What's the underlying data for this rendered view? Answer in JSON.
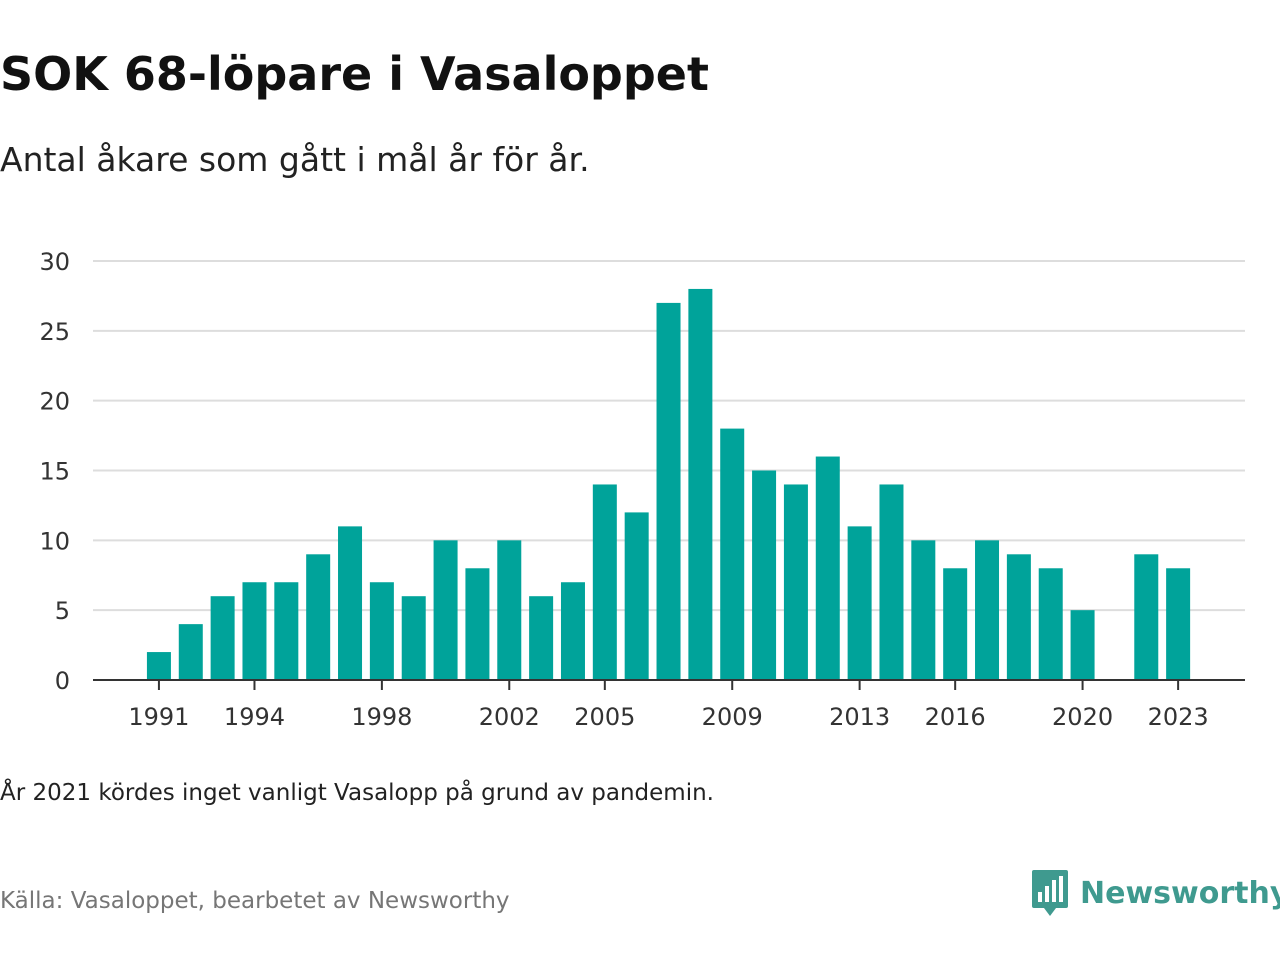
{
  "title": "SOK 68-löpare i Vasaloppet",
  "subtitle": "Antal åkare som gått i mål år för år.",
  "note": "År 2021 kördes inget vanligt Vasalopp på grund av pandemin.",
  "source": "Källa: Vasaloppet, bearbetet av Newsworthy",
  "brand": {
    "name": "Newsworthy",
    "icon": "newsworthy-logo-icon",
    "color": "#3f9a8f"
  },
  "colors": {
    "bar": "#00a39a",
    "grid": "#dddddd",
    "axis": "#333333"
  },
  "chart_data": {
    "type": "bar",
    "title": "SOK 68-löpare i Vasaloppet",
    "xlabel": "",
    "ylabel": "",
    "categories": [
      1991,
      1992,
      1993,
      1994,
      1995,
      1996,
      1997,
      1998,
      1999,
      2000,
      2001,
      2002,
      2003,
      2004,
      2005,
      2006,
      2007,
      2008,
      2009,
      2010,
      2011,
      2012,
      2013,
      2014,
      2015,
      2016,
      2017,
      2018,
      2019,
      2020,
      2021,
      2022,
      2023
    ],
    "values": [
      2,
      4,
      6,
      7,
      7,
      9,
      11,
      7,
      6,
      10,
      8,
      10,
      6,
      7,
      14,
      12,
      27,
      28,
      18,
      15,
      14,
      16,
      11,
      14,
      10,
      8,
      10,
      9,
      8,
      5,
      null,
      9,
      8
    ],
    "ylim": [
      0,
      30
    ],
    "yticks": [
      0,
      5,
      10,
      15,
      20,
      25,
      30
    ],
    "xticks": [
      1991,
      1994,
      1998,
      2002,
      2005,
      2009,
      2013,
      2016,
      2020,
      2023
    ],
    "grid": true,
    "legend": "none"
  }
}
